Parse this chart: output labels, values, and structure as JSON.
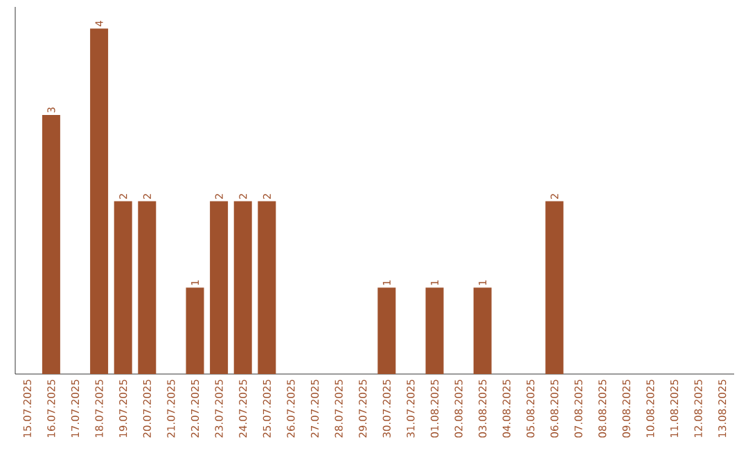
{
  "chart_data": {
    "type": "bar",
    "categories": [
      "15.07.2025",
      "16.07.2025",
      "17.07.2025",
      "18.07.2025",
      "19.07.2025",
      "20.07.2025",
      "21.07.2025",
      "22.07.2025",
      "23.07.2025",
      "24.07.2025",
      "25.07.2025",
      "26.07.2025",
      "27.07.2025",
      "28.07.2025",
      "29.07.2025",
      "30.07.2025",
      "31.07.2025",
      "01.08.2025",
      "02.08.2025",
      "03.08.2025",
      "04.08.2025",
      "05.08.2025",
      "06.08.2025",
      "07.08.2025",
      "08.08.2025",
      "09.08.2025",
      "10.08.2025",
      "11.08.2025",
      "12.08.2025",
      "13.08.2025"
    ],
    "values": [
      0,
      3,
      0,
      4,
      2,
      2,
      0,
      1,
      2,
      2,
      2,
      0,
      0,
      0,
      0,
      1,
      0,
      1,
      0,
      1,
      0,
      0,
      2,
      0,
      0,
      0,
      0,
      0,
      0,
      0
    ],
    "value_labels": [
      null,
      "3",
      null,
      "4",
      "2",
      "2",
      null,
      "1",
      "2",
      "2",
      "2",
      null,
      null,
      null,
      null,
      "1",
      null,
      "1",
      null,
      "1",
      null,
      null,
      "2",
      null,
      null,
      null,
      null,
      null,
      null,
      null
    ],
    "color": "#a0522d",
    "ylim": [
      0,
      4.25
    ],
    "tick_labels": "x"
  }
}
